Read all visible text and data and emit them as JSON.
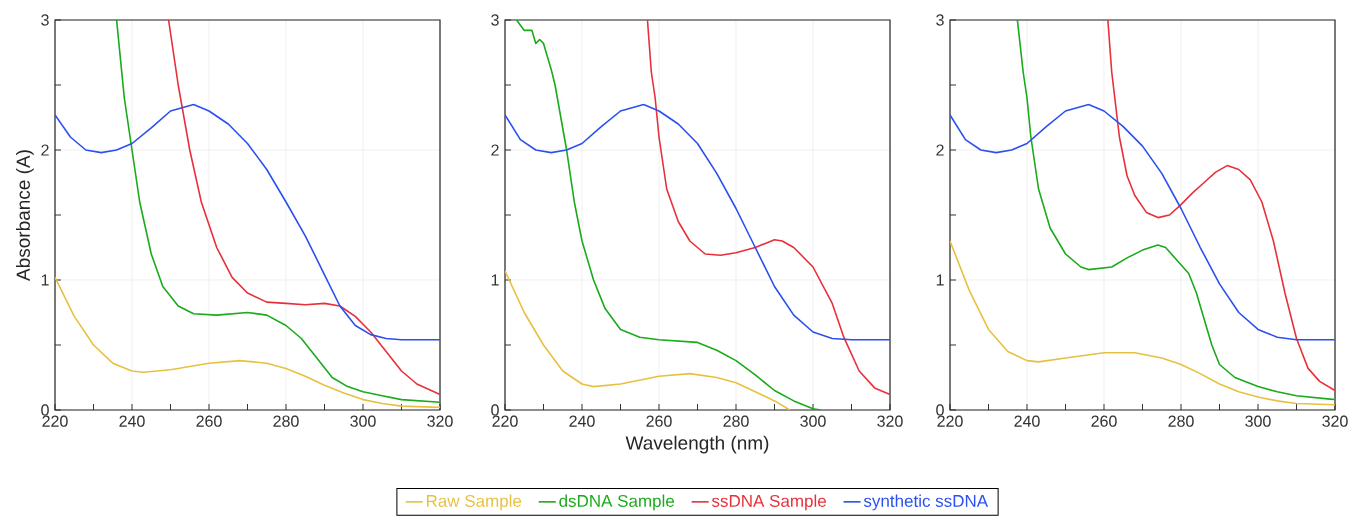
{
  "chart_data": [
    {
      "type": "line",
      "ylabel": "Absorbance (A)",
      "xlim": [
        220,
        320
      ],
      "ylim": [
        0,
        3
      ],
      "grid": true,
      "legend": false,
      "xticks": [
        220,
        {
          "value": 230,
          "label": null
        },
        240,
        {
          "value": 250,
          "label": null
        },
        260,
        {
          "value": 270,
          "label": null
        },
        280,
        {
          "value": 290,
          "label": null
        },
        300,
        {
          "value": 310,
          "label": null
        },
        320
      ],
      "yticks": [
        0,
        {
          "value": 0.5,
          "label": null
        },
        1,
        {
          "value": 1.5,
          "label": null
        },
        2,
        {
          "value": 2.5,
          "label": null
        },
        3
      ],
      "series": [
        {
          "color": "#e8c040",
          "x": [
            220,
            225,
            230,
            235,
            240,
            243,
            250,
            260,
            268,
            275,
            280,
            285,
            290,
            295,
            300,
            305,
            310,
            320
          ],
          "values": [
            1.02,
            0.72,
            0.5,
            0.36,
            0.3,
            0.29,
            0.31,
            0.36,
            0.38,
            0.36,
            0.32,
            0.26,
            0.19,
            0.13,
            0.08,
            0.05,
            0.03,
            0.02
          ]
        },
        {
          "color": "#1aaa1a",
          "x": [
            236,
            238,
            240,
            242,
            245,
            248,
            252,
            256,
            262,
            270,
            275,
            280,
            284,
            288,
            292,
            296,
            300,
            305,
            310,
            320
          ],
          "values": [
            3,
            2.4,
            2.0,
            1.6,
            1.2,
            0.95,
            0.8,
            0.74,
            0.73,
            0.75,
            0.73,
            0.65,
            0.55,
            0.4,
            0.25,
            0.18,
            0.14,
            0.11,
            0.08,
            0.06
          ]
        },
        {
          "color": "#e8303a",
          "x": [
            249.5,
            252,
            255,
            258,
            262,
            266,
            270,
            275,
            280,
            285,
            290,
            294,
            298,
            302,
            306,
            310,
            314,
            320
          ],
          "values": [
            3,
            2.5,
            2.0,
            1.6,
            1.25,
            1.02,
            0.9,
            0.83,
            0.82,
            0.81,
            0.82,
            0.8,
            0.72,
            0.6,
            0.45,
            0.3,
            0.2,
            0.12
          ]
        },
        {
          "color": "#2a50f0",
          "x": [
            220,
            224,
            228,
            232,
            236,
            240,
            245,
            250,
            256,
            260,
            265,
            270,
            275,
            280,
            285,
            290,
            294,
            298,
            302,
            306,
            310,
            320
          ],
          "values": [
            2.27,
            2.1,
            2.0,
            1.98,
            2.0,
            2.05,
            2.17,
            2.3,
            2.35,
            2.3,
            2.2,
            2.05,
            1.85,
            1.6,
            1.34,
            1.04,
            0.8,
            0.65,
            0.58,
            0.55,
            0.54,
            0.54
          ]
        }
      ]
    },
    {
      "type": "line",
      "xlabel": "Wavelength (nm)",
      "xlim": [
        220,
        320
      ],
      "ylim": [
        0,
        3
      ],
      "grid": true,
      "legend": "bottom",
      "xticks": [
        220,
        {
          "value": 230,
          "label": null
        },
        240,
        {
          "value": 250,
          "label": null
        },
        260,
        {
          "value": 270,
          "label": null
        },
        280,
        {
          "value": 290,
          "label": null
        },
        300,
        {
          "value": 310,
          "label": null
        },
        320
      ],
      "yticks": [
        0,
        {
          "value": 0.5,
          "label": null
        },
        1,
        {
          "value": 1.5,
          "label": null
        },
        2,
        {
          "value": 2.5,
          "label": null
        },
        3
      ],
      "series": [
        {
          "name": "Raw Sample",
          "color": "#e8c040",
          "x": [
            220,
            225,
            230,
            235,
            240,
            243,
            250,
            260,
            268,
            275,
            280,
            285,
            290,
            294
          ],
          "values": [
            1.07,
            0.75,
            0.5,
            0.3,
            0.2,
            0.18,
            0.2,
            0.26,
            0.28,
            0.25,
            0.21,
            0.14,
            0.07,
            0
          ]
        },
        {
          "name": "dsDNA Sample",
          "color": "#1aaa1a",
          "x": [
            223,
            225,
            227,
            228,
            229,
            230,
            232,
            233,
            236,
            238,
            240,
            243,
            246,
            250,
            255,
            260,
            270,
            275,
            280,
            285,
            290,
            295,
            300,
            302
          ],
          "values": [
            3,
            2.92,
            2.92,
            2.82,
            2.85,
            2.82,
            2.62,
            2.5,
            2.0,
            1.6,
            1.3,
            1.0,
            0.78,
            0.62,
            0.56,
            0.54,
            0.52,
            0.46,
            0.38,
            0.27,
            0.15,
            0.07,
            0.01,
            0
          ]
        },
        {
          "name": "ssDNA Sample",
          "color": "#e8303a",
          "x": [
            257,
            258,
            259,
            260,
            262,
            265,
            268,
            272,
            276,
            280,
            285,
            290,
            292,
            295,
            300,
            305,
            308,
            312,
            316,
            320
          ],
          "values": [
            3,
            2.6,
            2.4,
            2.1,
            1.7,
            1.45,
            1.3,
            1.2,
            1.19,
            1.21,
            1.25,
            1.31,
            1.3,
            1.25,
            1.1,
            0.82,
            0.56,
            0.3,
            0.17,
            0.12
          ]
        },
        {
          "name": "synthetic ssDNA",
          "color": "#2a50f0",
          "x": [
            220,
            224,
            228,
            232,
            236,
            240,
            245,
            250,
            256,
            260,
            265,
            270,
            275,
            280,
            285,
            290,
            295,
            300,
            305,
            310,
            320
          ],
          "values": [
            2.27,
            2.08,
            2.0,
            1.98,
            2.0,
            2.05,
            2.18,
            2.3,
            2.35,
            2.3,
            2.2,
            2.05,
            1.82,
            1.55,
            1.25,
            0.95,
            0.73,
            0.6,
            0.55,
            0.54,
            0.54
          ]
        }
      ]
    },
    {
      "type": "line",
      "xlim": [
        220,
        320
      ],
      "ylim": [
        0,
        3
      ],
      "grid": true,
      "legend": false,
      "xticks": [
        220,
        {
          "value": 230,
          "label": null
        },
        240,
        {
          "value": 250,
          "label": null
        },
        260,
        {
          "value": 270,
          "label": null
        },
        280,
        {
          "value": 290,
          "label": null
        },
        300,
        {
          "value": 310,
          "label": null
        },
        320
      ],
      "yticks": [
        0,
        {
          "value": 0.5,
          "label": null
        },
        1,
        {
          "value": 1.5,
          "label": null
        },
        2,
        {
          "value": 2.5,
          "label": null
        },
        3
      ],
      "series": [
        {
          "color": "#e8c040",
          "x": [
            220,
            225,
            230,
            235,
            240,
            243,
            250,
            260,
            268,
            275,
            280,
            285,
            290,
            295,
            300,
            305,
            310,
            320
          ],
          "values": [
            1.3,
            0.92,
            0.62,
            0.45,
            0.38,
            0.37,
            0.4,
            0.44,
            0.44,
            0.4,
            0.35,
            0.28,
            0.2,
            0.14,
            0.1,
            0.07,
            0.05,
            0.04
          ]
        },
        {
          "color": "#1aaa1a",
          "x": [
            237.5,
            239,
            240,
            241,
            243,
            246,
            250,
            254,
            256,
            262,
            266,
            270,
            274,
            276,
            279,
            282,
            284,
            286,
            288,
            290,
            294,
            300,
            305,
            310,
            320
          ],
          "values": [
            3,
            2.6,
            2.4,
            2.1,
            1.7,
            1.4,
            1.2,
            1.1,
            1.08,
            1.1,
            1.17,
            1.23,
            1.27,
            1.25,
            1.15,
            1.05,
            0.9,
            0.7,
            0.5,
            0.35,
            0.25,
            0.18,
            0.14,
            0.11,
            0.08
          ]
        },
        {
          "color": "#e8303a",
          "x": [
            261,
            262,
            264,
            266,
            268,
            271,
            274,
            277,
            280,
            283,
            286,
            289,
            292,
            295,
            298,
            301,
            304,
            307,
            310,
            313,
            316,
            320
          ],
          "values": [
            3,
            2.6,
            2.1,
            1.8,
            1.65,
            1.52,
            1.48,
            1.5,
            1.58,
            1.67,
            1.75,
            1.83,
            1.88,
            1.85,
            1.77,
            1.6,
            1.3,
            0.9,
            0.55,
            0.32,
            0.22,
            0.15
          ]
        },
        {
          "color": "#2a50f0",
          "x": [
            220,
            224,
            228,
            232,
            236,
            240,
            245,
            250,
            256,
            260,
            265,
            270,
            275,
            280,
            285,
            290,
            295,
            300,
            305,
            310,
            320
          ],
          "values": [
            2.27,
            2.08,
            2.0,
            1.98,
            2.0,
            2.05,
            2.18,
            2.3,
            2.35,
            2.3,
            2.18,
            2.03,
            1.82,
            1.55,
            1.25,
            0.97,
            0.75,
            0.62,
            0.56,
            0.54,
            0.54
          ]
        }
      ]
    }
  ]
}
